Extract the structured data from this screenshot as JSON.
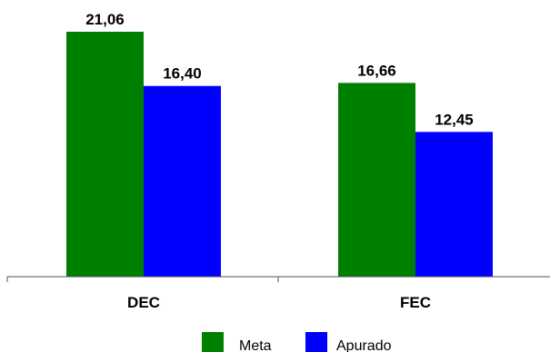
{
  "chart_data": {
    "type": "bar",
    "categories": [
      "DEC",
      "FEC"
    ],
    "series": [
      {
        "name": "Meta",
        "values": [
          21.06,
          16.66
        ],
        "labels": [
          "21,06",
          "16,66"
        ],
        "color": "#008000"
      },
      {
        "name": "Apurado",
        "values": [
          16.4,
          12.45
        ],
        "labels": [
          "16,40",
          "12,45"
        ],
        "color": "#0000ff"
      }
    ],
    "ylim": [
      0,
      21.06
    ],
    "grid": false,
    "legend": "bottom-center"
  }
}
